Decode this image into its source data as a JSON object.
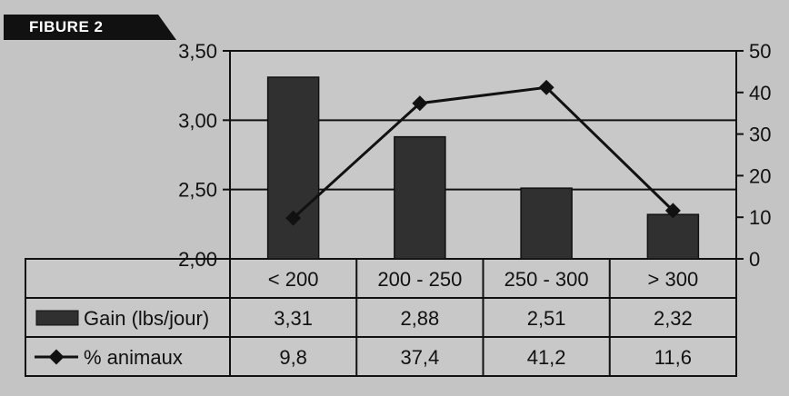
{
  "figure_label": "FIBURE 2",
  "chart_data": {
    "type": "bar",
    "categories": [
      "< 200",
      "200 - 250",
      "250 - 300",
      "> 300"
    ],
    "series": [
      {
        "name": "Gain (lbs/jour)",
        "type": "bar",
        "axis": "left",
        "values": [
          3.31,
          2.88,
          2.51,
          2.32
        ],
        "labels": [
          "3,31",
          "2,88",
          "2,51",
          "2,32"
        ]
      },
      {
        "name": "% animaux",
        "type": "line",
        "axis": "right",
        "values": [
          9.8,
          37.4,
          41.2,
          11.6
        ],
        "labels": [
          "9,8",
          "37,4",
          "41,2",
          "11,6"
        ]
      }
    ],
    "y_left": {
      "ylim": [
        2.0,
        3.5
      ],
      "ticks": [
        "2,00",
        "2,50",
        "3,00",
        "3,50"
      ],
      "tick_values": [
        2.0,
        2.5,
        3.0,
        3.5
      ]
    },
    "y_right": {
      "ylim": [
        0,
        50
      ],
      "ticks": [
        "0",
        "10",
        "20",
        "30",
        "40",
        "50"
      ],
      "tick_values": [
        0,
        10,
        20,
        30,
        40,
        50
      ]
    },
    "grid": true,
    "legend": "data-table"
  },
  "colors": {
    "bar": "#303030",
    "line": "#111111",
    "background": "#c4c4c4"
  }
}
